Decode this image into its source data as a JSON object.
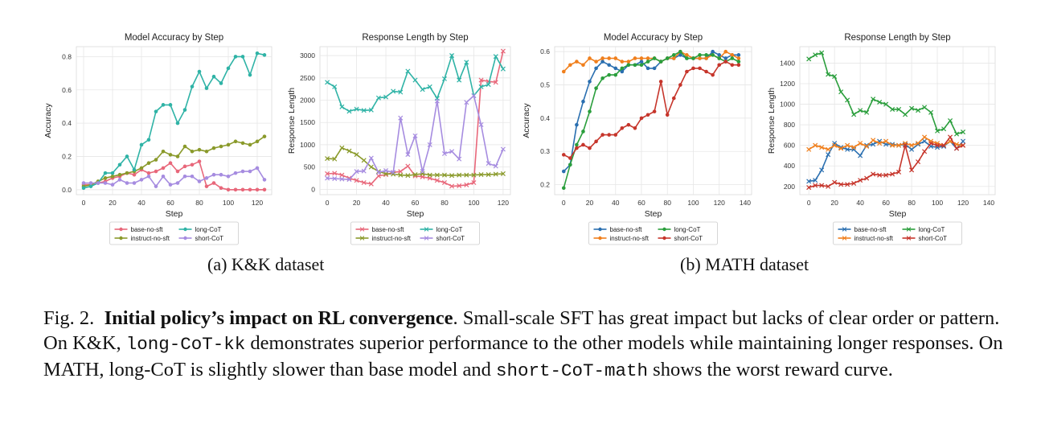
{
  "colors": {
    "base": "#e8677a",
    "instruct": "#8a9a2b",
    "long": "#2fb3a6",
    "short": "#a68ce0",
    "m_base": "#2a6fb0",
    "m_instruct": "#f07f1c",
    "m_long": "#2a9e3c",
    "m_short": "#c6352b"
  },
  "subcaptions": {
    "a": "(a)  K&K dataset",
    "b": "(b)  MATH dataset"
  },
  "caption": {
    "prefix": "Fig. 2.",
    "bold": "Initial policy’s impact on RL convergence",
    "s1": ". Small-scale SFT has great impact but lacks of clear order or pattern. On K&K,",
    "code1": "long-CoT-kk",
    "s2": "demonstrates superior performance to the other models while maintaining longer responses. On MATH, long-CoT is slightly slower than base model and",
    "code2": "short-CoT-math",
    "s3": "shows the worst reward curve."
  },
  "chart_data": [
    {
      "type": "line",
      "title": "Model Accuracy by Step",
      "xlabel": "Step",
      "ylabel": "Accuracy",
      "xlim": [
        -5,
        130
      ],
      "ylim": [
        -0.03,
        0.86
      ],
      "xticks": [
        0,
        20,
        40,
        60,
        80,
        100,
        120
      ],
      "yticks": [
        0.0,
        0.2,
        0.4,
        0.6,
        0.8
      ],
      "ytick_labels": [
        "0.0",
        "0.2",
        "0.4",
        "0.6",
        "0.8"
      ],
      "grid": true,
      "marker": "dot",
      "legend_placement": "below",
      "series": [
        {
          "name": "base-no-sft",
          "color_key": "base",
          "x": [
            0,
            5,
            10,
            15,
            20,
            25,
            30,
            35,
            40,
            45,
            50,
            55,
            60,
            65,
            70,
            75,
            80,
            85,
            90,
            95,
            100,
            105,
            110,
            115,
            120,
            125
          ],
          "y": [
            0.03,
            0.03,
            0.04,
            0.05,
            0.07,
            0.08,
            0.1,
            0.09,
            0.12,
            0.1,
            0.11,
            0.13,
            0.16,
            0.11,
            0.14,
            0.15,
            0.17,
            0.02,
            0.04,
            0.01,
            0.0,
            0.0,
            0.0,
            0.0,
            0.0,
            0.0
          ]
        },
        {
          "name": "instruct-no-sft",
          "color_key": "instruct",
          "x": [
            0,
            5,
            10,
            15,
            20,
            25,
            30,
            35,
            40,
            45,
            50,
            55,
            60,
            65,
            70,
            75,
            80,
            85,
            90,
            95,
            100,
            105,
            110,
            115,
            120,
            125
          ],
          "y": [
            0.02,
            0.03,
            0.05,
            0.07,
            0.08,
            0.09,
            0.1,
            0.11,
            0.13,
            0.16,
            0.18,
            0.23,
            0.21,
            0.2,
            0.26,
            0.23,
            0.24,
            0.23,
            0.25,
            0.26,
            0.27,
            0.29,
            0.28,
            0.27,
            0.29,
            0.32
          ]
        },
        {
          "name": "long-CoT",
          "color_key": "long",
          "x": [
            0,
            5,
            10,
            15,
            20,
            25,
            30,
            35,
            40,
            45,
            50,
            55,
            60,
            65,
            70,
            75,
            80,
            85,
            90,
            95,
            100,
            105,
            110,
            115,
            120,
            125
          ],
          "y": [
            0.01,
            0.02,
            0.04,
            0.1,
            0.1,
            0.15,
            0.2,
            0.12,
            0.27,
            0.3,
            0.47,
            0.51,
            0.51,
            0.4,
            0.48,
            0.62,
            0.71,
            0.61,
            0.68,
            0.64,
            0.73,
            0.8,
            0.8,
            0.69,
            0.82,
            0.81
          ]
        },
        {
          "name": "short-CoT",
          "color_key": "short",
          "x": [
            0,
            5,
            10,
            15,
            20,
            25,
            30,
            35,
            40,
            45,
            50,
            55,
            60,
            65,
            70,
            75,
            80,
            85,
            90,
            95,
            100,
            105,
            110,
            115,
            120,
            125
          ],
          "y": [
            0.04,
            0.04,
            0.04,
            0.04,
            0.03,
            0.06,
            0.04,
            0.04,
            0.06,
            0.08,
            0.02,
            0.08,
            0.03,
            0.04,
            0.08,
            0.08,
            0.05,
            0.07,
            0.09,
            0.09,
            0.08,
            0.1,
            0.11,
            0.11,
            0.13,
            0.06
          ]
        }
      ]
    },
    {
      "type": "line",
      "title": "Response Length by Step",
      "xlabel": "Step",
      "ylabel": "Response Length",
      "xlim": [
        -5,
        125
      ],
      "ylim": [
        -120,
        3200
      ],
      "xticks": [
        0,
        20,
        40,
        60,
        80,
        100,
        120
      ],
      "yticks": [
        0,
        500,
        1000,
        1500,
        2000,
        2500,
        3000
      ],
      "ytick_labels": [
        "0",
        "500",
        "1000",
        "1500",
        "2000",
        "2500",
        "3000"
      ],
      "grid": true,
      "marker": "x",
      "legend_placement": "below",
      "series": [
        {
          "name": "base-no-sft",
          "color_key": "base",
          "x": [
            0,
            5,
            10,
            15,
            20,
            25,
            30,
            35,
            40,
            45,
            50,
            55,
            60,
            65,
            70,
            75,
            80,
            85,
            90,
            95,
            100,
            105,
            110,
            115,
            120
          ],
          "y": [
            350,
            360,
            320,
            250,
            200,
            150,
            120,
            300,
            330,
            380,
            400,
            520,
            300,
            280,
            250,
            200,
            150,
            70,
            80,
            100,
            150,
            2450,
            2420,
            2400,
            3100
          ]
        },
        {
          "name": "instruct-no-sft",
          "color_key": "instruct",
          "x": [
            0,
            5,
            10,
            15,
            20,
            25,
            30,
            35,
            40,
            45,
            50,
            55,
            60,
            65,
            70,
            75,
            80,
            85,
            90,
            95,
            100,
            105,
            110,
            115,
            120
          ],
          "y": [
            690,
            680,
            930,
            860,
            780,
            650,
            500,
            400,
            350,
            340,
            320,
            310,
            330,
            350,
            320,
            320,
            320,
            310,
            320,
            320,
            320,
            330,
            330,
            340,
            350
          ]
        },
        {
          "name": "long-CoT",
          "color_key": "long",
          "x": [
            0,
            5,
            10,
            15,
            20,
            25,
            30,
            35,
            40,
            45,
            50,
            55,
            60,
            65,
            70,
            75,
            80,
            85,
            90,
            95,
            100,
            105,
            110,
            115,
            120
          ],
          "y": [
            2400,
            2300,
            1850,
            1750,
            1800,
            1770,
            1780,
            2050,
            2070,
            2200,
            2180,
            2650,
            2450,
            2240,
            2300,
            2040,
            2480,
            3000,
            2450,
            2850,
            2100,
            2300,
            2350,
            2980,
            2700
          ]
        },
        {
          "name": "short-CoT",
          "color_key": "short",
          "x": [
            0,
            5,
            10,
            15,
            20,
            25,
            30,
            35,
            40,
            45,
            50,
            55,
            60,
            65,
            70,
            75,
            80,
            85,
            90,
            95,
            100,
            105,
            110,
            115,
            120
          ],
          "y": [
            250,
            240,
            230,
            220,
            400,
            410,
            700,
            380,
            420,
            380,
            1600,
            780,
            1200,
            400,
            1000,
            1980,
            800,
            850,
            680,
            1950,
            2100,
            1450,
            580,
            520,
            900
          ]
        }
      ]
    },
    {
      "type": "line",
      "title": "Model Accuracy by Step",
      "xlabel": "Step",
      "ylabel": "Accuracy",
      "xlim": [
        -7,
        145
      ],
      "ylim": [
        0.17,
        0.615
      ],
      "xticks": [
        0,
        20,
        40,
        60,
        80,
        100,
        120,
        140
      ],
      "yticks": [
        0.2,
        0.3,
        0.4,
        0.5,
        0.6
      ],
      "ytick_labels": [
        "0.2",
        "0.3",
        "0.4",
        "0.5",
        "0.6"
      ],
      "grid": true,
      "marker": "dot",
      "legend_placement": "below",
      "series": [
        {
          "name": "base-no-sft",
          "color_key": "m_base",
          "x": [
            0,
            5,
            10,
            15,
            20,
            25,
            30,
            35,
            40,
            45,
            50,
            55,
            60,
            65,
            70,
            75,
            80,
            85,
            90,
            95,
            100,
            105,
            110,
            115,
            120,
            125,
            130,
            135
          ],
          "y": [
            0.24,
            0.26,
            0.38,
            0.45,
            0.51,
            0.55,
            0.57,
            0.56,
            0.55,
            0.54,
            0.56,
            0.56,
            0.57,
            0.55,
            0.55,
            0.57,
            0.58,
            0.58,
            0.59,
            0.58,
            0.58,
            0.58,
            0.58,
            0.6,
            0.59,
            0.58,
            0.59,
            0.59
          ]
        },
        {
          "name": "instruct-no-sft",
          "color_key": "m_instruct",
          "x": [
            0,
            5,
            10,
            15,
            20,
            25,
            30,
            35,
            40,
            45,
            50,
            55,
            60,
            65,
            70,
            75,
            80,
            85,
            90,
            95,
            100,
            105,
            110,
            115,
            120,
            125,
            130,
            135
          ],
          "y": [
            0.54,
            0.56,
            0.57,
            0.56,
            0.58,
            0.57,
            0.58,
            0.58,
            0.58,
            0.57,
            0.57,
            0.58,
            0.58,
            0.58,
            0.58,
            0.57,
            0.58,
            0.58,
            0.6,
            0.59,
            0.58,
            0.58,
            0.58,
            0.59,
            0.58,
            0.6,
            0.59,
            0.58
          ]
        },
        {
          "name": "long-CoT",
          "color_key": "m_long",
          "x": [
            0,
            5,
            10,
            15,
            20,
            25,
            30,
            35,
            40,
            45,
            50,
            55,
            60,
            65,
            70,
            75,
            80,
            85,
            90,
            95,
            100,
            105,
            110,
            115,
            120,
            125,
            130,
            135
          ],
          "y": [
            0.19,
            0.26,
            0.32,
            0.36,
            0.42,
            0.49,
            0.52,
            0.53,
            0.53,
            0.55,
            0.56,
            0.56,
            0.56,
            0.57,
            0.58,
            0.57,
            0.58,
            0.59,
            0.6,
            0.58,
            0.58,
            0.59,
            0.59,
            0.59,
            0.58,
            0.57,
            0.58,
            0.57
          ]
        },
        {
          "name": "short-CoT",
          "color_key": "m_short",
          "x": [
            0,
            5,
            10,
            15,
            20,
            25,
            30,
            35,
            40,
            45,
            50,
            55,
            60,
            65,
            70,
            75,
            80,
            85,
            90,
            95,
            100,
            105,
            110,
            115,
            120,
            125,
            130,
            135
          ],
          "y": [
            0.29,
            0.28,
            0.31,
            0.32,
            0.31,
            0.33,
            0.35,
            0.35,
            0.35,
            0.37,
            0.38,
            0.37,
            0.4,
            0.41,
            0.42,
            0.51,
            0.41,
            0.46,
            0.5,
            0.54,
            0.55,
            0.55,
            0.54,
            0.53,
            0.56,
            0.57,
            0.56,
            0.56
          ]
        }
      ]
    },
    {
      "type": "line",
      "title": "Response Length by Step",
      "xlabel": "Step",
      "ylabel": "Response Length",
      "xlim": [
        -7,
        145
      ],
      "ylim": [
        120,
        1560
      ],
      "xticks": [
        0,
        20,
        40,
        60,
        80,
        100,
        120,
        140
      ],
      "yticks": [
        200,
        400,
        600,
        800,
        1000,
        1200,
        1400
      ],
      "ytick_labels": [
        "200",
        "400",
        "600",
        "800",
        "1000",
        "1200",
        "1400"
      ],
      "grid": true,
      "marker": "x",
      "legend_placement": "below",
      "series": [
        {
          "name": "base-no-sft",
          "color_key": "m_base",
          "x": [
            0,
            5,
            10,
            15,
            20,
            25,
            30,
            35,
            40,
            45,
            50,
            55,
            60,
            65,
            70,
            75,
            80,
            85,
            90,
            95,
            100,
            105,
            110,
            115,
            120
          ],
          "y": [
            250,
            260,
            360,
            510,
            620,
            580,
            560,
            560,
            500,
            600,
            610,
            640,
            610,
            610,
            600,
            610,
            560,
            610,
            640,
            590,
            580,
            590,
            640,
            570,
            640
          ]
        },
        {
          "name": "instruct-no-sft",
          "color_key": "m_instruct",
          "x": [
            0,
            5,
            10,
            15,
            20,
            25,
            30,
            35,
            40,
            45,
            50,
            55,
            60,
            65,
            70,
            75,
            80,
            85,
            90,
            95,
            100,
            105,
            110,
            115,
            120
          ],
          "y": [
            560,
            600,
            580,
            560,
            600,
            570,
            600,
            580,
            620,
            590,
            650,
            620,
            640,
            600,
            600,
            620,
            600,
            620,
            680,
            640,
            620,
            600,
            640,
            610,
            600
          ]
        },
        {
          "name": "long-CoT",
          "color_key": "m_long",
          "x": [
            0,
            5,
            10,
            15,
            20,
            25,
            30,
            35,
            40,
            45,
            50,
            55,
            60,
            65,
            70,
            75,
            80,
            85,
            90,
            95,
            100,
            105,
            110,
            115,
            120
          ],
          "y": [
            1440,
            1480,
            1500,
            1290,
            1270,
            1120,
            1040,
            900,
            940,
            920,
            1050,
            1020,
            1000,
            950,
            950,
            900,
            960,
            940,
            970,
            920,
            740,
            760,
            840,
            710,
            730
          ]
        },
        {
          "name": "short-CoT",
          "color_key": "m_short",
          "x": [
            0,
            5,
            10,
            15,
            20,
            25,
            30,
            35,
            40,
            45,
            50,
            55,
            60,
            65,
            70,
            75,
            80,
            85,
            90,
            95,
            100,
            105,
            110,
            115,
            120
          ],
          "y": [
            190,
            210,
            210,
            200,
            240,
            220,
            220,
            230,
            260,
            280,
            320,
            310,
            310,
            320,
            340,
            600,
            360,
            440,
            540,
            620,
            600,
            600,
            680,
            570,
            600
          ]
        }
      ]
    }
  ]
}
